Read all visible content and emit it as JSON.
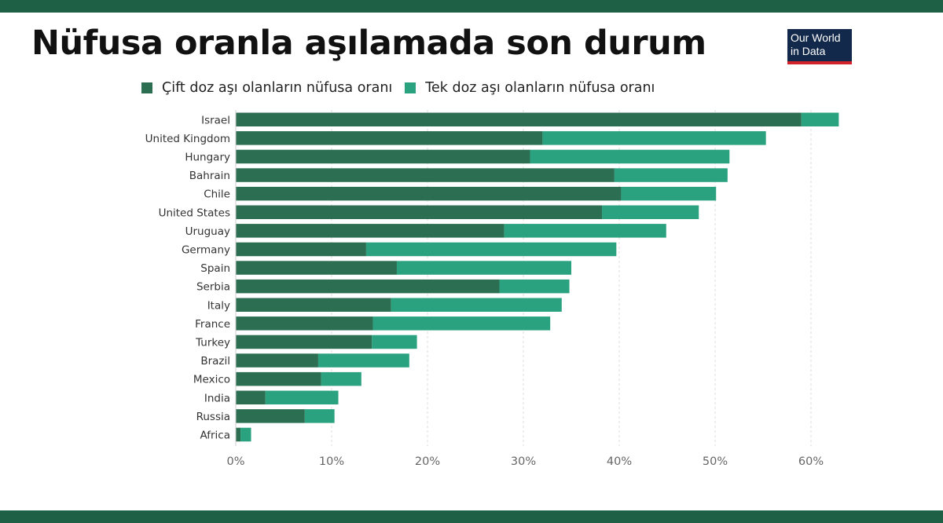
{
  "title": "Nüfusa oranla aşılamada son durum",
  "logo": {
    "line1": "Our World",
    "line2": "in Data"
  },
  "colors": {
    "double_dose": "#2c6e52",
    "single_dose": "#2aa27f",
    "band": "#1e6045",
    "grid": "#dddddd"
  },
  "chart_data": {
    "type": "bar",
    "orientation": "horizontal",
    "stacked": true,
    "categories": [
      "Israel",
      "United Kingdom",
      "Hungary",
      "Bahrain",
      "Chile",
      "United States",
      "Uruguay",
      "Germany",
      "Spain",
      "Serbia",
      "Italy",
      "France",
      "Turkey",
      "Brazil",
      "Mexico",
      "India",
      "Russia",
      "Africa"
    ],
    "series": [
      {
        "name": "Çift doz aşı olanların nüfusa oranı",
        "color": "#2c6e52",
        "values": [
          59,
          32,
          30.7,
          39.5,
          40.2,
          38.2,
          28,
          13.6,
          16.8,
          27.5,
          16.2,
          14.3,
          14.2,
          8.6,
          8.9,
          3.1,
          7.2,
          0.5
        ]
      },
      {
        "name": "Tek doz aşı olanların nüfusa oranı",
        "color": "#2aa27f",
        "values": [
          3.9,
          23.3,
          20.8,
          11.8,
          9.9,
          10.1,
          16.9,
          26.1,
          18.2,
          7.3,
          17.8,
          18.5,
          4.7,
          9.5,
          4.2,
          7.6,
          3.1,
          1.1
        ]
      }
    ],
    "xlim": [
      0,
      65
    ],
    "xticks": [
      0,
      10,
      20,
      30,
      40,
      50,
      60
    ],
    "xtick_labels": [
      "0%",
      "10%",
      "20%",
      "30%",
      "40%",
      "50%",
      "60%"
    ],
    "grid": "vertical-dashed",
    "legend_position": "top"
  }
}
